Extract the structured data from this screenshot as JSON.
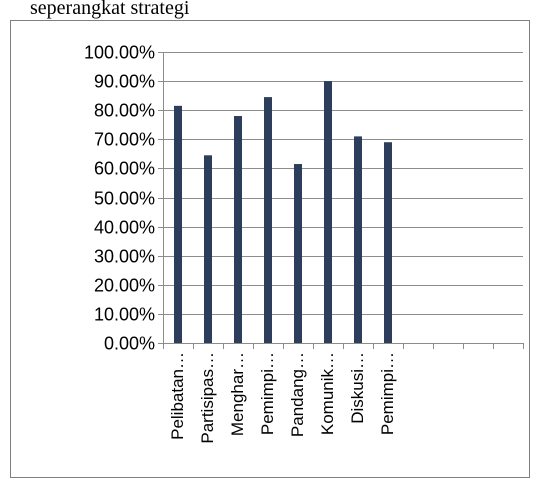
{
  "intro_text": "seperangkat strategi",
  "chart_data": {
    "type": "bar",
    "title": "",
    "xlabel": "",
    "ylabel": "",
    "ylim": [
      0,
      100
    ],
    "y_tick_format": "percent_2dp",
    "grid": true,
    "legend": "none",
    "bar_color": "#2c3e5c",
    "slot_count": 12,
    "categories": [
      "Pelibatan…",
      "Partisipas…",
      "Menghar…",
      "Pemimpi…",
      "Pandang…",
      "Komunik…",
      "Diskusi…",
      "Pemimpi…"
    ],
    "values": [
      81.5,
      64.5,
      78,
      84.5,
      61.5,
      90,
      71,
      69
    ],
    "y_ticks": [
      "0.00%",
      "10.00%",
      "20.00%",
      "30.00%",
      "40.00%",
      "50.00%",
      "60.00%",
      "70.00%",
      "80.00%",
      "90.00%",
      "100.00%"
    ]
  }
}
